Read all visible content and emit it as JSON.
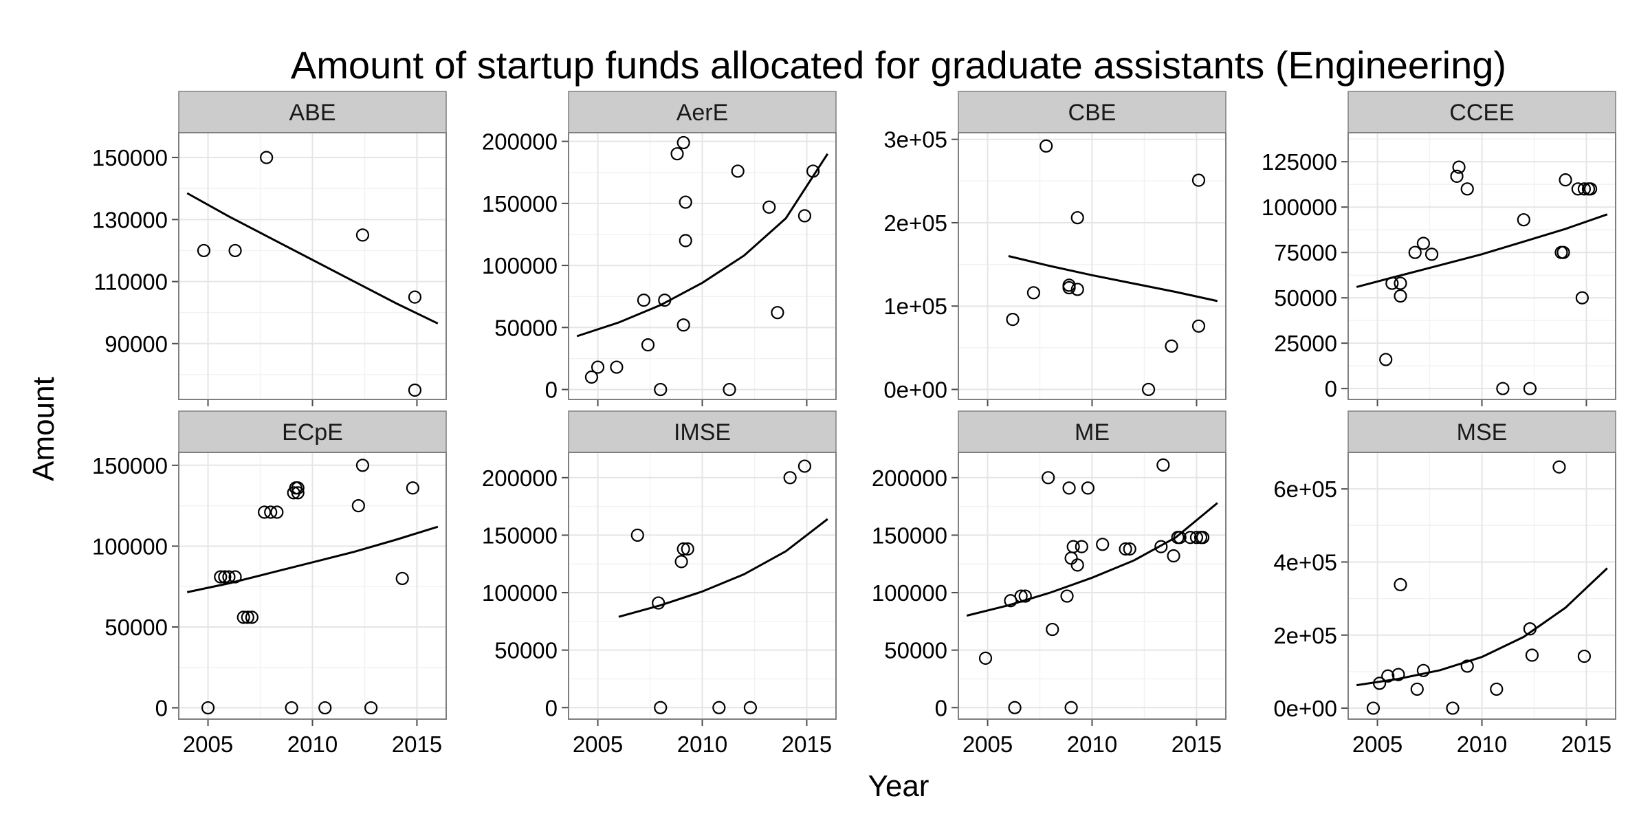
{
  "chart_data": {
    "type": "scatter",
    "title": "Amount of startup funds allocated for graduate assistants (Engineering)",
    "xlabel": "Year",
    "ylabel": "Amount",
    "xlim": [
      2003.6,
      2016.4
    ],
    "x_ticks": [
      "2005",
      "2010",
      "2015"
    ],
    "x_tick_values": [
      2005,
      2010,
      2015
    ],
    "grid": true,
    "panels": [
      {
        "name": "ABE",
        "ylim": [
          72000,
          158000
        ],
        "y_ticks": [
          "90000",
          "110000",
          "130000",
          "150000"
        ],
        "y_tick_values": [
          90000,
          110000,
          130000,
          150000
        ],
        "points": [
          [
            2004.8,
            120000
          ],
          [
            2006.3,
            120000
          ],
          [
            2007.8,
            150000
          ],
          [
            2012.4,
            125000
          ],
          [
            2014.9,
            105000
          ],
          [
            2014.9,
            75000
          ]
        ],
        "fit": [
          [
            2004,
            138500
          ],
          [
            2006,
            131000
          ],
          [
            2008,
            124000
          ],
          [
            2010,
            117000
          ],
          [
            2012,
            110000
          ],
          [
            2014,
            103000
          ],
          [
            2016,
            96500
          ]
        ]
      },
      {
        "name": "AerE",
        "ylim": [
          -8000,
          207000
        ],
        "y_ticks": [
          "0",
          "50000",
          "100000",
          "150000",
          "200000"
        ],
        "y_tick_values": [
          0,
          50000,
          100000,
          150000,
          200000
        ],
        "points": [
          [
            2004.7,
            10000
          ],
          [
            2005.0,
            18000
          ],
          [
            2005.9,
            18000
          ],
          [
            2007.2,
            72000
          ],
          [
            2007.4,
            36000
          ],
          [
            2008.0,
            0
          ],
          [
            2008.2,
            72000
          ],
          [
            2008.8,
            190000
          ],
          [
            2009.1,
            199000
          ],
          [
            2009.1,
            52000
          ],
          [
            2009.2,
            151000
          ],
          [
            2009.2,
            120000
          ],
          [
            2011.3,
            0
          ],
          [
            2011.7,
            176000
          ],
          [
            2013.2,
            147000
          ],
          [
            2013.6,
            62000
          ],
          [
            2014.9,
            140000
          ],
          [
            2015.3,
            176000
          ]
        ],
        "fit": [
          [
            2004,
            43000
          ],
          [
            2006,
            54000
          ],
          [
            2008,
            68000
          ],
          [
            2010,
            86000
          ],
          [
            2012,
            108000
          ],
          [
            2014,
            138000
          ],
          [
            2016,
            190000
          ]
        ]
      },
      {
        "name": "CBE",
        "ylim": [
          -12000,
          308000
        ],
        "y_ticks": [
          "0e+00",
          "1e+05",
          "2e+05",
          "3e+05"
        ],
        "y_tick_values": [
          0,
          100000,
          200000,
          300000
        ],
        "points": [
          [
            2006.2,
            84000
          ],
          [
            2007.2,
            116000
          ],
          [
            2007.8,
            292000
          ],
          [
            2008.9,
            125000
          ],
          [
            2008.9,
            122000
          ],
          [
            2009.3,
            120000
          ],
          [
            2009.3,
            206000
          ],
          [
            2012.7,
            0
          ],
          [
            2013.8,
            52000
          ],
          [
            2015.1,
            251000
          ],
          [
            2015.1,
            76000
          ]
        ],
        "fit": [
          [
            2006,
            160000
          ],
          [
            2008,
            148000
          ],
          [
            2010,
            137000
          ],
          [
            2012,
            127000
          ],
          [
            2014,
            117000
          ],
          [
            2016,
            106000
          ]
        ]
      },
      {
        "name": "CCEE",
        "ylim": [
          -6000,
          141000
        ],
        "y_ticks": [
          "0",
          "25000",
          "50000",
          "75000",
          "100000",
          "125000"
        ],
        "y_tick_values": [
          0,
          25000,
          50000,
          75000,
          100000,
          125000
        ],
        "points": [
          [
            2005.4,
            16000
          ],
          [
            2005.7,
            58000
          ],
          [
            2006.1,
            58000
          ],
          [
            2006.1,
            51000
          ],
          [
            2006.8,
            75000
          ],
          [
            2007.2,
            80000
          ],
          [
            2007.6,
            74000
          ],
          [
            2008.8,
            117000
          ],
          [
            2008.9,
            122000
          ],
          [
            2009.3,
            110000
          ],
          [
            2011.0,
            0
          ],
          [
            2012.0,
            93000
          ],
          [
            2012.3,
            0
          ],
          [
            2013.8,
            75000
          ],
          [
            2013.9,
            75000
          ],
          [
            2014.0,
            115000
          ],
          [
            2014.6,
            110000
          ],
          [
            2014.8,
            50000
          ],
          [
            2014.9,
            110000
          ],
          [
            2015.1,
            110000
          ],
          [
            2015.2,
            110000
          ]
        ],
        "fit": [
          [
            2004,
            56000
          ],
          [
            2006,
            62000
          ],
          [
            2008,
            68000
          ],
          [
            2010,
            74000
          ],
          [
            2012,
            81000
          ],
          [
            2014,
            88000
          ],
          [
            2016,
            96000
          ]
        ]
      },
      {
        "name": "ECpE",
        "ylim": [
          -7000,
          158000
        ],
        "y_ticks": [
          "0",
          "50000",
          "100000",
          "150000"
        ],
        "y_tick_values": [
          0,
          50000,
          100000,
          150000
        ],
        "points": [
          [
            2005.0,
            0
          ],
          [
            2005.6,
            81000
          ],
          [
            2005.8,
            81000
          ],
          [
            2006.0,
            81000
          ],
          [
            2006.3,
            81000
          ],
          [
            2006.7,
            56000
          ],
          [
            2006.9,
            56000
          ],
          [
            2007.1,
            56000
          ],
          [
            2007.7,
            121000
          ],
          [
            2008.0,
            121000
          ],
          [
            2008.3,
            121000
          ],
          [
            2009.0,
            0
          ],
          [
            2009.1,
            133000
          ],
          [
            2009.2,
            136000
          ],
          [
            2009.3,
            136000
          ],
          [
            2009.3,
            133000
          ],
          [
            2010.6,
            0
          ],
          [
            2012.2,
            125000
          ],
          [
            2012.4,
            150000
          ],
          [
            2012.8,
            0
          ],
          [
            2014.3,
            80000
          ],
          [
            2014.8,
            136000
          ]
        ],
        "fit": [
          [
            2004,
            71500
          ],
          [
            2006,
            77000
          ],
          [
            2008,
            83500
          ],
          [
            2010,
            90000
          ],
          [
            2012,
            96500
          ],
          [
            2014,
            104000
          ],
          [
            2016,
            112000
          ]
        ]
      },
      {
        "name": "IMSE",
        "ylim": [
          -10000,
          222000
        ],
        "y_ticks": [
          "0",
          "50000",
          "100000",
          "150000",
          "200000"
        ],
        "y_tick_values": [
          0,
          50000,
          100000,
          150000,
          200000
        ],
        "points": [
          [
            2006.9,
            150000
          ],
          [
            2007.9,
            91000
          ],
          [
            2008.0,
            0
          ],
          [
            2009.0,
            127000
          ],
          [
            2009.1,
            138000
          ],
          [
            2009.3,
            138000
          ],
          [
            2010.8,
            0
          ],
          [
            2012.3,
            0
          ],
          [
            2014.2,
            200000
          ],
          [
            2014.9,
            210000
          ]
        ],
        "fit": [
          [
            2006,
            79000
          ],
          [
            2008,
            89000
          ],
          [
            2010,
            101000
          ],
          [
            2012,
            116000
          ],
          [
            2014,
            136000
          ],
          [
            2016,
            164000
          ]
        ]
      },
      {
        "name": "ME",
        "ylim": [
          -10000,
          222000
        ],
        "y_ticks": [
          "0",
          "50000",
          "100000",
          "150000",
          "200000"
        ],
        "y_tick_values": [
          0,
          50000,
          100000,
          150000,
          200000
        ],
        "points": [
          [
            2004.9,
            43000
          ],
          [
            2006.1,
            93000
          ],
          [
            2006.3,
            0
          ],
          [
            2006.6,
            97000
          ],
          [
            2006.8,
            97000
          ],
          [
            2007.9,
            200000
          ],
          [
            2008.1,
            68000
          ],
          [
            2008.8,
            97000
          ],
          [
            2008.9,
            191000
          ],
          [
            2009.0,
            130000
          ],
          [
            2009.0,
            0
          ],
          [
            2009.1,
            140000
          ],
          [
            2009.3,
            124000
          ],
          [
            2009.5,
            140000
          ],
          [
            2009.8,
            191000
          ],
          [
            2010.5,
            142000
          ],
          [
            2011.6,
            138000
          ],
          [
            2011.8,
            138000
          ],
          [
            2013.3,
            140000
          ],
          [
            2013.4,
            211000
          ],
          [
            2013.9,
            132000
          ],
          [
            2014.1,
            148000
          ],
          [
            2014.2,
            148000
          ],
          [
            2014.7,
            148000
          ],
          [
            2015.0,
            148000
          ],
          [
            2015.2,
            148000
          ],
          [
            2015.3,
            148000
          ]
        ],
        "fit": [
          [
            2004,
            80000
          ],
          [
            2006,
            89000
          ],
          [
            2008,
            100000
          ],
          [
            2010,
            113000
          ],
          [
            2012,
            128000
          ],
          [
            2014,
            148000
          ],
          [
            2016,
            178000
          ]
        ]
      },
      {
        "name": "MSE",
        "ylim": [
          -30000,
          700000
        ],
        "y_ticks": [
          "0e+00",
          "2e+05",
          "4e+05",
          "6e+05"
        ],
        "y_tick_values": [
          0,
          200000,
          400000,
          600000
        ],
        "points": [
          [
            2004.8,
            0
          ],
          [
            2005.1,
            68000
          ],
          [
            2005.5,
            88000
          ],
          [
            2006.0,
            92000
          ],
          [
            2006.1,
            338000
          ],
          [
            2006.9,
            52000
          ],
          [
            2007.2,
            103000
          ],
          [
            2008.6,
            0
          ],
          [
            2009.3,
            115000
          ],
          [
            2010.7,
            52000
          ],
          [
            2012.3,
            217000
          ],
          [
            2012.4,
            145000
          ],
          [
            2013.7,
            660000
          ],
          [
            2014.9,
            142000
          ]
        ],
        "fit": [
          [
            2004,
            63000
          ],
          [
            2006,
            80000
          ],
          [
            2008,
            104000
          ],
          [
            2010,
            140000
          ],
          [
            2012,
            195000
          ],
          [
            2014,
            275000
          ],
          [
            2016,
            383000
          ]
        ]
      }
    ]
  }
}
